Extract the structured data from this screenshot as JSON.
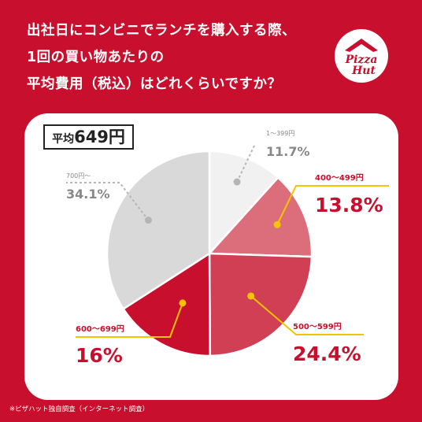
{
  "title_lines": [
    "出社日にコンビニでランチを購入する際、",
    "1回の買い物あたりの",
    "平均費用（税込）はどれくらいですか？"
  ],
  "logo": {
    "line1": "Pizza",
    "line2": "Hut"
  },
  "average": {
    "label": "平均",
    "value": "649円"
  },
  "footnote": "※ピザハット独自調査（インターネット調査）",
  "colors": {
    "background": "#c8102e",
    "card": "#ffffff",
    "leader": "#f5c400"
  },
  "chart_data": {
    "type": "pie",
    "start_angle_deg": 0,
    "direction": "clockwise",
    "slices": [
      {
        "label": "1〜399円",
        "value_text": "11.7%",
        "value": 11.7,
        "color": "#f1f1f1",
        "label_color": "#888888",
        "value_color": "#888888"
      },
      {
        "label": "400〜499円",
        "value_text": "13.8%",
        "value": 13.8,
        "color": "#dc6e7c",
        "label_color": "#c8102e",
        "value_color": "#c8102e"
      },
      {
        "label": "500〜599円",
        "value_text": "24.4%",
        "value": 24.4,
        "color": "#d13f55",
        "label_color": "#c8102e",
        "value_color": "#c8102e"
      },
      {
        "label": "600〜699円",
        "value_text": "16%",
        "value": 16,
        "color": "#c8102e",
        "label_color": "#c8102e",
        "value_color": "#c8102e"
      },
      {
        "label": "700円〜",
        "value_text": "34.1%",
        "value": 34.1,
        "color": "#d9d9d9",
        "label_color": "#888888",
        "value_color": "#888888"
      }
    ]
  }
}
